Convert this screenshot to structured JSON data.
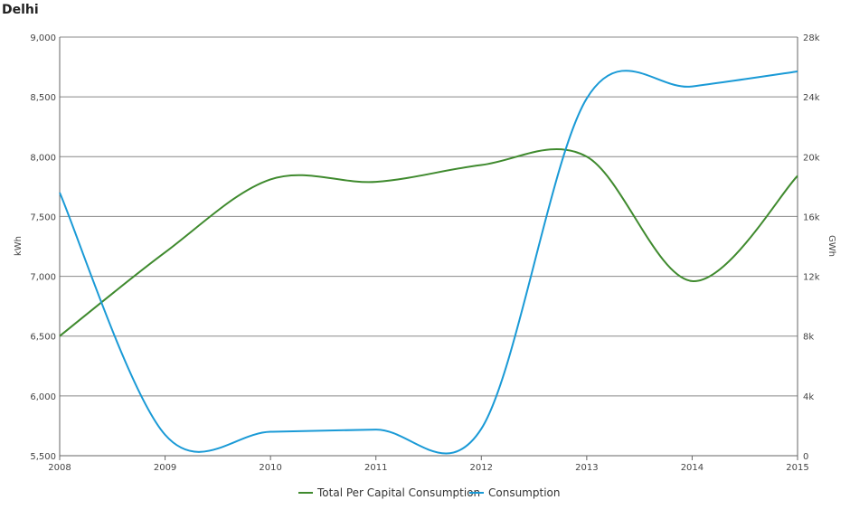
{
  "chart_data": {
    "type": "line",
    "title": "Delhi",
    "x": [
      "2008",
      "2009",
      "2010",
      "2011",
      "2012",
      "2013",
      "2014",
      "2015"
    ],
    "y_left": {
      "label": "kWh",
      "lim": [
        5500,
        9000
      ],
      "ticks": [
        "5,500",
        "6,000",
        "6,500",
        "7,000",
        "7,500",
        "8,000",
        "8,500",
        "9,000"
      ],
      "tick_values": [
        5500,
        6000,
        6500,
        7000,
        7500,
        8000,
        8500,
        9000
      ]
    },
    "y_right": {
      "label": "GWh",
      "lim": [
        0,
        28000
      ],
      "ticks": [
        "0",
        "4k",
        "8k",
        "12k",
        "16k",
        "20k",
        "24k",
        "28k"
      ],
      "tick_values": [
        0,
        4000,
        8000,
        12000,
        16000,
        20000,
        24000,
        28000
      ]
    },
    "grid": true,
    "legend_position": "bottom",
    "series": [
      {
        "name": "Total Per Capital Consumption",
        "axis": "left",
        "color": "#3f8a2e",
        "values": [
          6500,
          7200,
          7810,
          7790,
          7930,
          8000,
          6960,
          7840
        ]
      },
      {
        "name": "Consumption",
        "axis": "right",
        "color": "#1a9ad6",
        "values": [
          17600,
          1400,
          1600,
          1750,
          1800,
          23900,
          24700,
          25700
        ]
      }
    ]
  }
}
